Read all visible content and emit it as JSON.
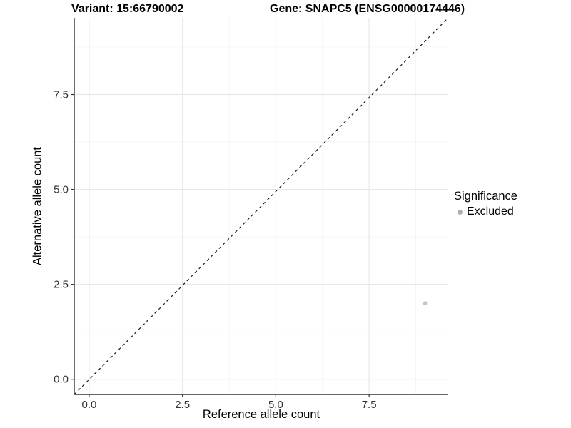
{
  "header": {
    "variant_title": "Variant: 15:66790002",
    "gene_title": "Gene: SNAPC5 (ENSG00000174446)"
  },
  "chart_data": {
    "type": "scatter",
    "xlabel": "Reference allele count",
    "ylabel": "Alternative allele count",
    "xlim": [
      -0.4,
      9.62
    ],
    "ylim": [
      -0.4,
      9.52
    ],
    "x_ticks": {
      "values": [
        0,
        2.5,
        5,
        7.5
      ],
      "labels": [
        "0.0",
        "2.5",
        "5.0",
        "7.5"
      ]
    },
    "y_ticks": {
      "values": [
        0,
        2.5,
        5,
        7.5
      ],
      "labels": [
        "0.0",
        "2.5",
        "5.0",
        "7.5"
      ]
    },
    "minor_grid": [
      1.25,
      3.75,
      6.25,
      8.75
    ],
    "grid": "on",
    "identity_line": {
      "equation": "y = x",
      "style": "dashed",
      "color": "#1a1a1a"
    },
    "series": [
      {
        "name": "Excluded",
        "color": "#c7c7c7",
        "points": [
          {
            "x": 9,
            "y": 2
          }
        ]
      }
    ],
    "legend": {
      "title": "Significance",
      "position": "right",
      "items": [
        {
          "label": "Excluded",
          "color": "#b0b0b0"
        }
      ]
    },
    "style_colors": {
      "major_grid": "#e8e8e8",
      "minor_grid": "#f4f4f4",
      "axis_line": "#333333",
      "tick_label": "#333333"
    }
  }
}
